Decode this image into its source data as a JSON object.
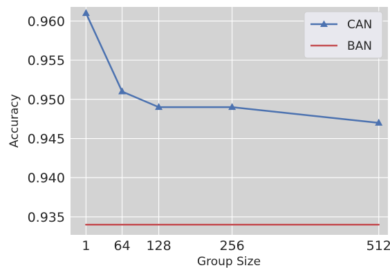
{
  "chart_data": {
    "type": "line",
    "title": "",
    "xlabel": "Group Size",
    "ylabel": "Accuracy",
    "x": [
      1,
      64,
      128,
      256,
      512
    ],
    "x_ticks": [
      "1",
      "64",
      "128",
      "256",
      "512"
    ],
    "xlim": [
      -26,
      528
    ],
    "ylim": [
      0.9327,
      0.9618
    ],
    "y_ticks": [
      "0.935",
      "0.940",
      "0.945",
      "0.950",
      "0.955",
      "0.960"
    ],
    "y_tick_values": [
      0.935,
      0.94,
      0.945,
      0.95,
      0.955,
      0.96
    ],
    "grid": true,
    "legend_position": "top-right",
    "series": [
      {
        "name": "CAN",
        "values": [
          0.961,
          0.951,
          0.949,
          0.949,
          0.947
        ],
        "color": "#4c72b0",
        "marker": "triangle"
      },
      {
        "name": "BAN",
        "values": [
          0.934,
          0.934,
          0.934,
          0.934,
          0.934
        ],
        "color": "#c44e52",
        "marker": "none"
      }
    ],
    "colors": {
      "plot_background": "#d3d3d3",
      "grid": "#ffffff",
      "text": "#262626"
    }
  }
}
